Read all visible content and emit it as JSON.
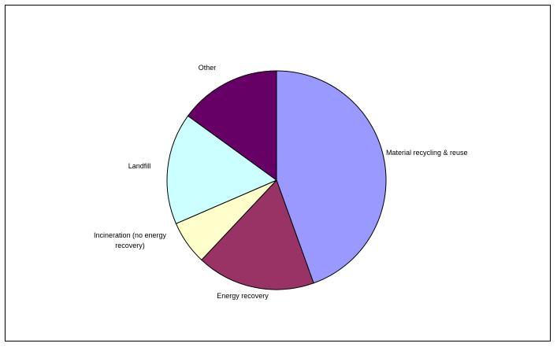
{
  "chart_data": {
    "type": "pie",
    "title": "",
    "categories": [
      "Material recycling & reuse",
      "Energy recovery",
      "Incineration (no energy recovery)",
      "Landfill",
      "Other"
    ],
    "values": [
      44.5,
      17.5,
      6.5,
      16.5,
      15.0
    ],
    "colors": [
      "#9999FF",
      "#993366",
      "#FFFFCC",
      "#CCFFFF",
      "#660066"
    ],
    "legend": "none",
    "label_lines": [
      [
        "Material recycling & reuse"
      ],
      [
        "Energy recovery"
      ],
      [
        "Incineration (no energy",
        "recovery)"
      ],
      [
        "Landfill"
      ],
      [
        "Other"
      ]
    ]
  }
}
